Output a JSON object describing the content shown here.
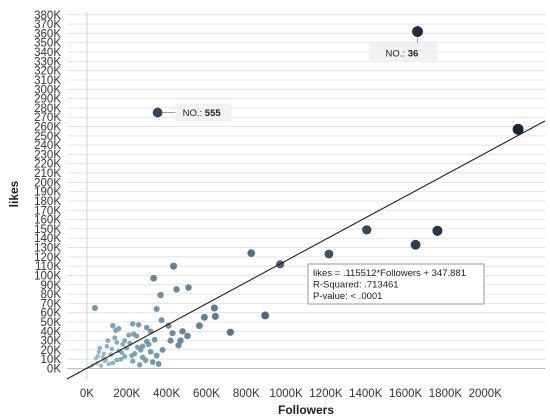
{
  "chart_data": {
    "type": "scatter",
    "xlabel": "Followers",
    "ylabel": "likes",
    "xlim": [
      -100000,
      2300000
    ],
    "ylim": [
      -8000,
      383000
    ],
    "x_ticks": [
      0,
      200000,
      400000,
      600000,
      800000,
      1000000,
      1200000,
      1400000,
      1600000,
      1800000,
      2000000
    ],
    "x_tick_labels": [
      "0K",
      "200K",
      "400K",
      "600K",
      "800K",
      "1000K",
      "1200K",
      "1400K",
      "1600K",
      "1800K",
      "2000K"
    ],
    "y_ticks": [
      0,
      10000,
      20000,
      30000,
      40000,
      50000,
      60000,
      70000,
      80000,
      90000,
      100000,
      110000,
      120000,
      130000,
      140000,
      150000,
      160000,
      170000,
      180000,
      190000,
      200000,
      210000,
      220000,
      230000,
      240000,
      250000,
      260000,
      270000,
      280000,
      290000,
      300000,
      310000,
      320000,
      330000,
      340000,
      350000,
      360000,
      370000,
      380000
    ],
    "y_tick_labels": [
      "0K",
      "10K",
      "20K",
      "30K",
      "40K",
      "50K",
      "60K",
      "70K",
      "80K",
      "90K",
      "100K",
      "110K",
      "120K",
      "130K",
      "140K",
      "150K",
      "160K",
      "170K",
      "180K",
      "190K",
      "200K",
      "210K",
      "220K",
      "230K",
      "240K",
      "250K",
      "260K",
      "270K",
      "280K",
      "290K",
      "300K",
      "310K",
      "320K",
      "330K",
      "340K",
      "350K",
      "360K",
      "370K",
      "380K"
    ],
    "grid": "horizontal",
    "color_scale": {
      "low": "#a8d4ea",
      "high": "#0b1a30"
    },
    "points": [
      [
        1660000,
        362000
      ],
      [
        355000,
        275000
      ],
      [
        2165000,
        257000
      ],
      [
        1760000,
        148000
      ],
      [
        1405000,
        149000
      ],
      [
        1650000,
        133000
      ],
      [
        825000,
        124000
      ],
      [
        1215000,
        123000
      ],
      [
        970000,
        112000
      ],
      [
        435000,
        110000
      ],
      [
        510000,
        87000
      ],
      [
        450000,
        85000
      ],
      [
        335000,
        97000
      ],
      [
        370000,
        79000
      ],
      [
        350000,
        64000
      ],
      [
        895000,
        57000
      ],
      [
        640000,
        65000
      ],
      [
        590000,
        55000
      ],
      [
        645000,
        56000
      ],
      [
        565000,
        46000
      ],
      [
        720000,
        39000
      ],
      [
        480000,
        40000
      ],
      [
        430000,
        38000
      ],
      [
        470000,
        30000
      ],
      [
        505000,
        35000
      ],
      [
        460000,
        25000
      ],
      [
        420000,
        30000
      ],
      [
        40000,
        65000
      ],
      [
        130000,
        46000
      ],
      [
        145000,
        41000
      ],
      [
        230000,
        48000
      ],
      [
        260000,
        47000
      ],
      [
        375000,
        52000
      ],
      [
        410000,
        46000
      ],
      [
        300000,
        44000
      ],
      [
        190000,
        30000
      ],
      [
        250000,
        35000
      ],
      [
        320000,
        40000
      ],
      [
        280000,
        24000
      ],
      [
        210000,
        36000
      ],
      [
        150000,
        28000
      ],
      [
        100000,
        24000
      ],
      [
        60000,
        18000
      ],
      [
        80000,
        12000
      ],
      [
        120000,
        15000
      ],
      [
        160000,
        19000
      ],
      [
        200000,
        22000
      ],
      [
        240000,
        16000
      ],
      [
        280000,
        12000
      ],
      [
        320000,
        18000
      ],
      [
        350000,
        14000
      ],
      [
        380000,
        20000
      ],
      [
        90000,
        8000
      ],
      [
        130000,
        6000
      ],
      [
        170000,
        10000
      ],
      [
        30000,
        4000
      ],
      [
        50000,
        6000
      ],
      [
        70000,
        3000
      ],
      [
        110000,
        5000
      ],
      [
        150000,
        9000
      ],
      [
        190000,
        13000
      ],
      [
        230000,
        8000
      ],
      [
        270000,
        20000
      ],
      [
        310000,
        26000
      ],
      [
        340000,
        31000
      ],
      [
        20000,
        2000
      ],
      [
        10000,
        1000
      ],
      [
        45000,
        11000
      ],
      [
        85000,
        16000
      ],
      [
        125000,
        21000
      ],
      [
        175000,
        17000
      ],
      [
        215000,
        27000
      ],
      [
        255000,
        23000
      ],
      [
        295000,
        9000
      ],
      [
        330000,
        7000
      ],
      [
        360000,
        5000
      ],
      [
        65000,
        22000
      ],
      [
        105000,
        30000
      ],
      [
        140000,
        33000
      ],
      [
        180000,
        26000
      ],
      [
        225000,
        14000
      ],
      [
        265000,
        4000
      ],
      [
        300000,
        29000
      ],
      [
        235000,
        37000
      ],
      [
        160000,
        43000
      ],
      [
        95000,
        9500
      ],
      [
        55000,
        13500
      ]
    ],
    "trend_line": {
      "slope": 0.115512,
      "intercept": 347.881,
      "x_range": [
        -100000,
        2300000
      ]
    },
    "annotations": [
      {
        "label": "NO.:",
        "value": "555"
      },
      {
        "label": "NO.:",
        "value": "36"
      }
    ],
    "model_tooltip": {
      "line1": "likes = .115512*Followers + 347.881",
      "line2": "R-Squared: .713461",
      "line3": "P-value: < .0001"
    }
  }
}
